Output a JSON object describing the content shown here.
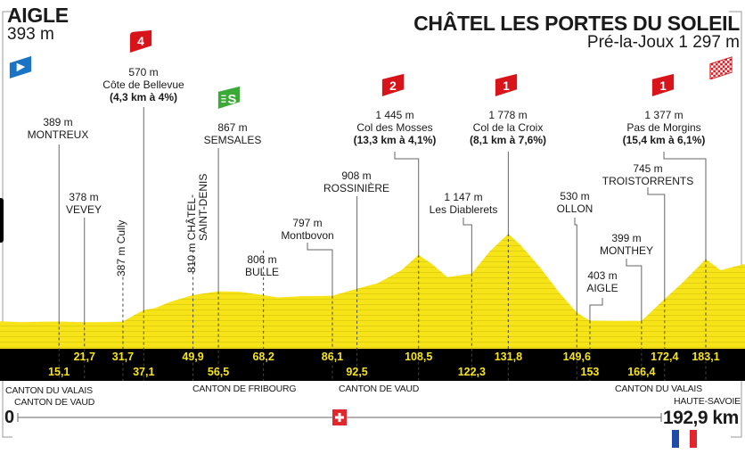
{
  "start": {
    "name": "AIGLE",
    "elevation": "393 m"
  },
  "finish": {
    "name": "CHÂTEL LES PORTES DU SOLEIL",
    "subtitle": "Pré-la-Joux 1 297 m"
  },
  "colors": {
    "profile": "#f7e418",
    "band": "#000000",
    "km_text": "#f7e418",
    "climb": "#d7141a",
    "sprint": "#3aa935",
    "start_flag": "#1a73c4"
  },
  "markers": [
    {
      "km": 15.1,
      "elev": "389 m",
      "name": "MONTREUX"
    },
    {
      "km": 21.7,
      "elev": "378 m",
      "name": "VEVEY"
    },
    {
      "km": 31.7,
      "elev": "387 m",
      "name": "Cully"
    },
    {
      "km": 37.1,
      "elev": "570 m",
      "name": "Côte de Bellevue",
      "climb": "(4,3 km à 4%)",
      "category": "4"
    },
    {
      "km": 49.9,
      "elev": "810 m",
      "name": "CHÂTEL-",
      "name2": "SAINT-DENIS"
    },
    {
      "km": 56.5,
      "elev": "867 m",
      "name": "SEMSALES",
      "sprint": "S"
    },
    {
      "km": 68.2,
      "elev": "806 m",
      "name": "BULLE"
    },
    {
      "km": 86.1,
      "elev": "797 m",
      "name": "Montbovon"
    },
    {
      "km": 92.5,
      "elev": "908 m",
      "name": "ROSSINIÈRE"
    },
    {
      "km": 108.5,
      "elev": "1 445 m",
      "name": "Col des Mosses",
      "climb": "(13,3 km à 4,1%)",
      "category": "2"
    },
    {
      "km": 122.3,
      "elev": "1 147 m",
      "name": "Les Diablerets"
    },
    {
      "km": 131.8,
      "elev": "1 778 m",
      "name": "Col de la Croix",
      "climb": "(8,1 km à 7,6%)",
      "category": "1"
    },
    {
      "km": 149.6,
      "elev": "530 m",
      "name": "OLLON"
    },
    {
      "km": 153,
      "elev": "403 m",
      "name": "AIGLE"
    },
    {
      "km": 166.4,
      "elev": "399 m",
      "name": "MONTHEY"
    },
    {
      "km": 172.4,
      "elev": "745 m",
      "name": "TROISTORRENTS"
    },
    {
      "km": 183.1,
      "elev": "1 377 m",
      "name": "Pas de Morgins",
      "climb": "(15,4 km à 6,1%)",
      "category": "1"
    }
  ],
  "km_labels": [
    "15,1",
    "21,7",
    "31,7",
    "37,1",
    "49,9",
    "56,5",
    "68,2",
    "86,1",
    "92,5",
    "108,5",
    "122,3",
    "131,8",
    "149,6",
    "153",
    "166,4",
    "172,4",
    "183,1"
  ],
  "regions": {
    "r1": "CANTON DU VALAIS",
    "r2": "CANTON DE VAUD",
    "r3": "CANTON DE FRIBOURG",
    "r4": "CANTON DE VAUD",
    "r5": "CANTON DU VALAIS",
    "r6": "HAUTE-SAVOIE"
  },
  "axis": {
    "start": "0",
    "end": "192,9 km"
  },
  "chart_data": {
    "type": "area",
    "title": "AIGLE → CHÂTEL LES PORTES DU SOLEIL",
    "xlabel": "km",
    "ylabel": "m",
    "xlim": [
      0,
      192.9
    ],
    "x": [
      0,
      5,
      10,
      15.1,
      21.7,
      27,
      31.7,
      34,
      37.1,
      40,
      44,
      49.9,
      56.5,
      62,
      68.2,
      72,
      78,
      86.1,
      92.5,
      98,
      104,
      108.5,
      112,
      116,
      122.3,
      127,
      131.8,
      135,
      140,
      145,
      149.6,
      153,
      160,
      166.4,
      172.4,
      177,
      183.1,
      187,
      190,
      192.9
    ],
    "y": [
      393,
      380,
      385,
      389,
      378,
      380,
      387,
      470,
      570,
      600,
      700,
      810,
      867,
      860,
      806,
      770,
      790,
      797,
      908,
      1000,
      1200,
      1445,
      1300,
      1090,
      1147,
      1500,
      1778,
      1600,
      1250,
      850,
      530,
      403,
      400,
      399,
      745,
      1000,
      1377,
      1200,
      1250,
      1297
    ]
  }
}
